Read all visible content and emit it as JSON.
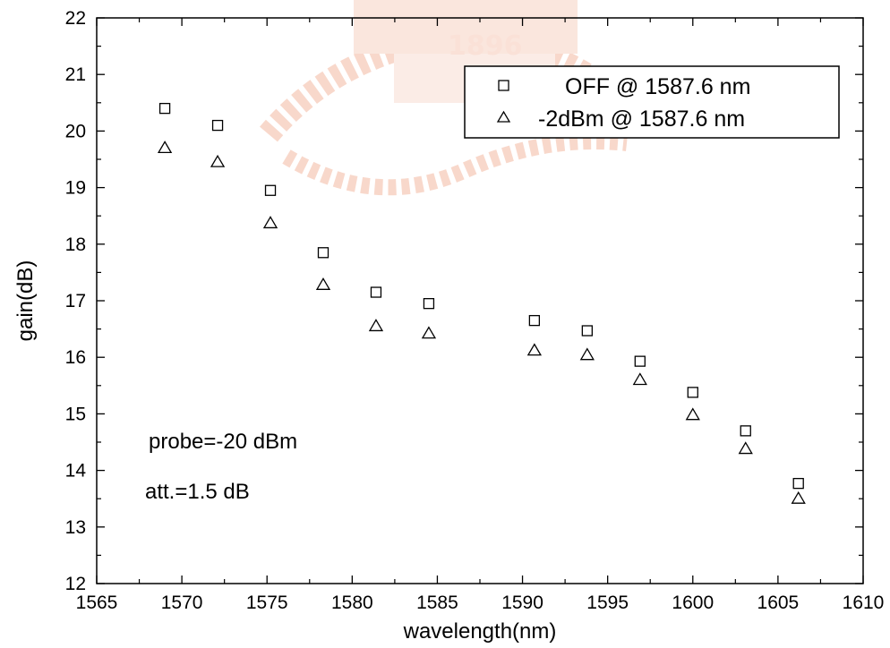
{
  "chart_data": {
    "type": "scatter",
    "title": "",
    "xlabel": "wavelength(nm)",
    "ylabel": "gain(dB)",
    "xlim": [
      1565,
      1610
    ],
    "ylim": [
      12,
      22
    ],
    "x_ticks": [
      1565,
      1570,
      1575,
      1580,
      1585,
      1590,
      1595,
      1600,
      1605,
      1610
    ],
    "y_ticks": [
      12,
      13,
      14,
      15,
      16,
      17,
      18,
      19,
      20,
      21,
      22
    ],
    "grid": false,
    "legend_position": "top-right",
    "series": [
      {
        "name": "OFF @ 1587.6 nm",
        "marker": "square",
        "x": [
          1569.0,
          1572.1,
          1575.2,
          1578.3,
          1581.4,
          1584.5,
          1590.7,
          1593.8,
          1596.9,
          1600.0,
          1603.1,
          1606.2
        ],
        "y": [
          20.4,
          20.1,
          18.95,
          17.85,
          17.15,
          16.95,
          16.65,
          16.47,
          15.93,
          15.38,
          14.7,
          13.77
        ]
      },
      {
        "name": "-2dBm @ 1587.6 nm",
        "marker": "triangle",
        "x": [
          1569.0,
          1572.1,
          1575.2,
          1578.3,
          1581.4,
          1584.5,
          1590.7,
          1593.8,
          1596.9,
          1600.0,
          1603.1,
          1606.2
        ],
        "y": [
          19.7,
          19.45,
          18.37,
          17.28,
          16.55,
          16.42,
          16.12,
          16.04,
          15.6,
          14.98,
          14.38,
          13.5
        ]
      }
    ],
    "annotations": [
      "probe=-20 dBm",
      "att.=1.5 dB"
    ]
  },
  "watermark": {
    "text": "1896",
    "color": "#f2a58a"
  }
}
